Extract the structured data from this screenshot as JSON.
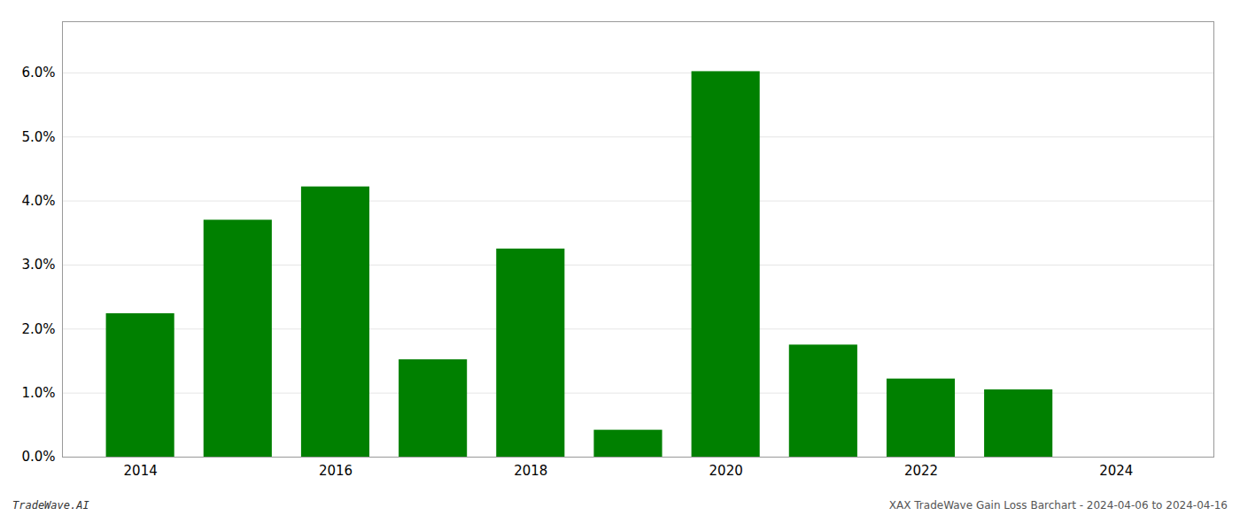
{
  "chart_data": {
    "type": "bar",
    "x": [
      2014,
      2015,
      2016,
      2017,
      2018,
      2019,
      2020,
      2021,
      2022,
      2023
    ],
    "values": [
      0.0224,
      0.037,
      0.0422,
      0.0152,
      0.0325,
      0.0042,
      0.0602,
      0.0175,
      0.0122,
      0.0105
    ],
    "color": "#008000",
    "xlim": [
      2013.2,
      2025.0
    ],
    "xticks": [
      2014,
      2016,
      2018,
      2020,
      2022,
      2024
    ],
    "ylim": [
      0.0,
      0.068
    ],
    "yticks": [
      {
        "value": 0.0,
        "label": "0.0%"
      },
      {
        "value": 0.01,
        "label": "1.0%"
      },
      {
        "value": 0.02,
        "label": "2.0%"
      },
      {
        "value": 0.03,
        "label": "3.0%"
      },
      {
        "value": 0.04,
        "label": "4.0%"
      },
      {
        "value": 0.05,
        "label": "5.0%"
      },
      {
        "value": 0.06,
        "label": "6.0%"
      }
    ],
    "grid": true,
    "annotations": [
      "TradeWave.AI",
      "XAX TradeWave Gain Loss Barchart - 2024-04-06 to 2024-04-16"
    ]
  }
}
